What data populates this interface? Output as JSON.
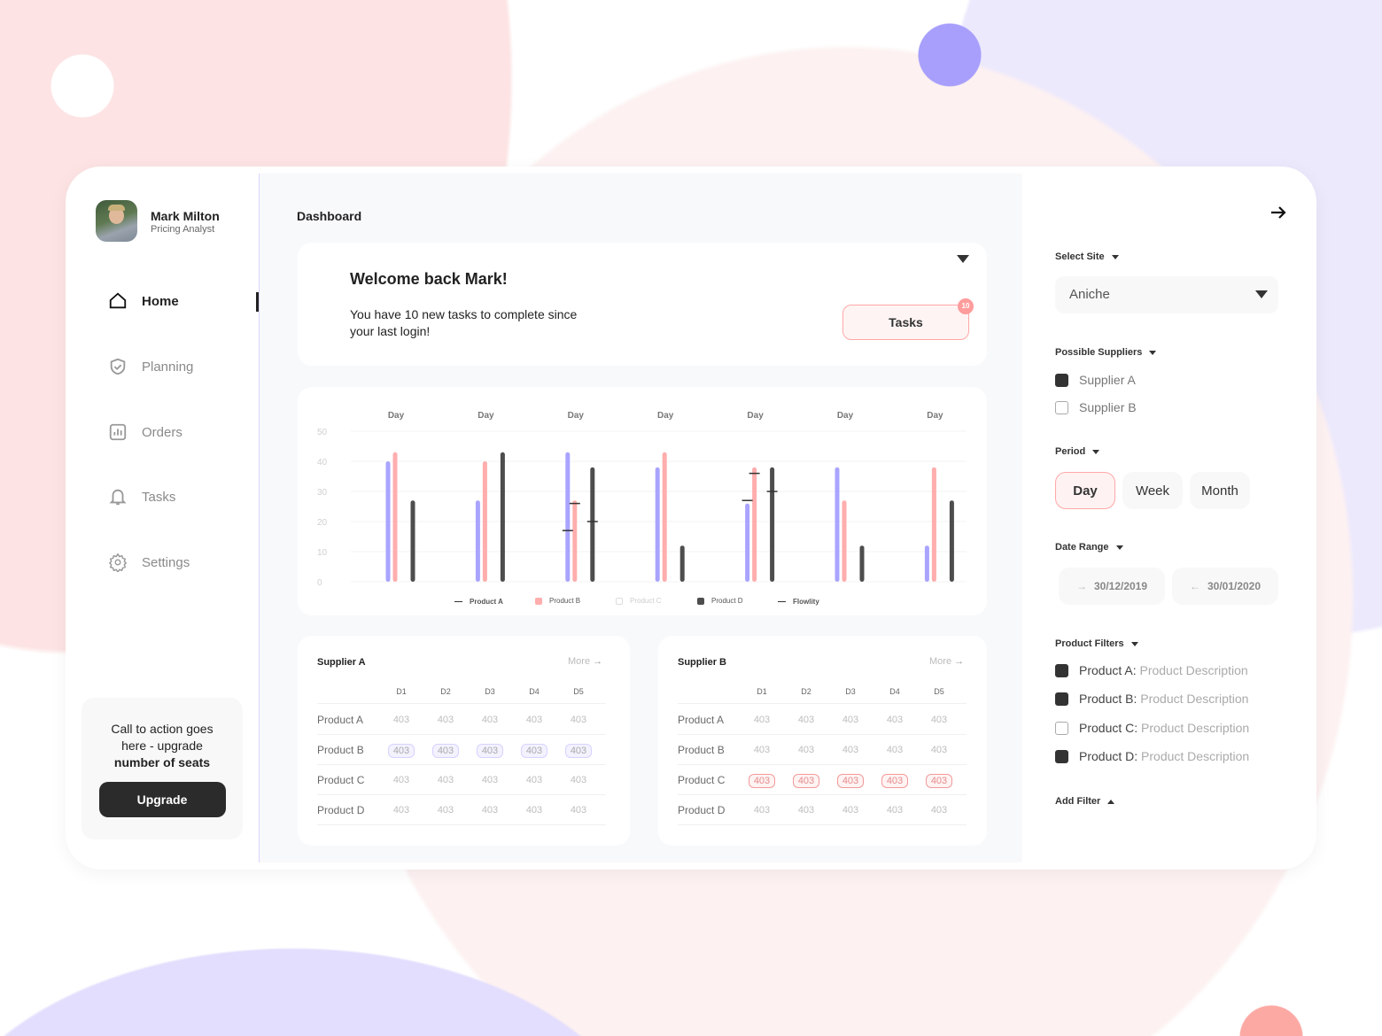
{
  "user": {
    "name": "Mark Milton",
    "role": "Pricing Analyst"
  },
  "nav": [
    {
      "label": "Home",
      "icon": "home-icon",
      "active": true
    },
    {
      "label": "Planning",
      "icon": "shield-check-icon"
    },
    {
      "label": "Orders",
      "icon": "bar-chart-icon"
    },
    {
      "label": "Tasks",
      "icon": "bell-icon"
    },
    {
      "label": "Settings",
      "icon": "gear-icon"
    }
  ],
  "cta": {
    "text_line1": "Call to action goes",
    "text_line2": "here - upgrade",
    "text_bold": "number of seats",
    "button": "Upgrade"
  },
  "header": {
    "title": "Dashboard"
  },
  "welcome": {
    "title": "Welcome back Mark!",
    "line1": "You have 10 new tasks to complete since",
    "line2": "your last login!",
    "tasks_button": "Tasks",
    "badge": "10"
  },
  "colors": {
    "product_a": "#a9a4ff",
    "product_b": "#ffadad",
    "product_d": "#4d4d4d",
    "accent_pink": "#ff9c9c"
  },
  "chart_data": {
    "type": "bar",
    "categories": [
      "Day",
      "Day",
      "Day",
      "Day",
      "Day",
      "Day",
      "Day"
    ],
    "ylim": [
      0,
      50
    ],
    "yticks": [
      0,
      10,
      20,
      30,
      40,
      50
    ],
    "grid": true,
    "legend_placement": "bottom",
    "legend": [
      "Product A",
      "Product B",
      "Product C",
      "Product D",
      "Flowlity"
    ],
    "series": [
      {
        "name": "Product A",
        "values": [
          40,
          27,
          43,
          38,
          26,
          38,
          12
        ]
      },
      {
        "name": "Product B",
        "values": [
          43,
          40,
          27,
          43,
          38,
          27,
          38
        ]
      },
      {
        "name": "Product C",
        "values": [
          null,
          null,
          null,
          null,
          null,
          null,
          null
        ]
      },
      {
        "name": "Product D",
        "values": [
          27,
          43,
          38,
          12,
          38,
          12,
          27
        ]
      }
    ],
    "flowlity_markers": [
      {
        "category_index": 2,
        "series": "Product A",
        "value": 17
      },
      {
        "category_index": 2,
        "series": "Product B",
        "value": 26
      },
      {
        "category_index": 2,
        "series": "Product D",
        "value": 20
      },
      {
        "category_index": 4,
        "series": "Product A",
        "value": 27
      },
      {
        "category_index": 4,
        "series": "Product B",
        "value": 36
      },
      {
        "category_index": 4,
        "series": "Product D",
        "value": 30
      }
    ]
  },
  "tables": [
    {
      "title": "Supplier A",
      "more": "More",
      "columns": [
        "D1",
        "D2",
        "D3",
        "D4",
        "D5"
      ],
      "rows": [
        {
          "label": "Product A",
          "values": [
            "403",
            "403",
            "403",
            "403",
            "403"
          ]
        },
        {
          "label": "Product B",
          "values": [
            "403",
            "403",
            "403",
            "403",
            "403"
          ],
          "highlight": "lavender"
        },
        {
          "label": "Product C",
          "values": [
            "403",
            "403",
            "403",
            "403",
            "403"
          ]
        },
        {
          "label": "Product D",
          "values": [
            "403",
            "403",
            "403",
            "403",
            "403"
          ]
        }
      ]
    },
    {
      "title": "Supplier B",
      "more": "More",
      "columns": [
        "D1",
        "D2",
        "D3",
        "D4",
        "D5"
      ],
      "rows": [
        {
          "label": "Product A",
          "values": [
            "403",
            "403",
            "403",
            "403",
            "403"
          ]
        },
        {
          "label": "Product B",
          "values": [
            "403",
            "403",
            "403",
            "403",
            "403"
          ]
        },
        {
          "label": "Product C",
          "values": [
            "403",
            "403",
            "403",
            "403",
            "403"
          ],
          "highlight": "pink"
        },
        {
          "label": "Product D",
          "values": [
            "403",
            "403",
            "403",
            "403",
            "403"
          ]
        }
      ]
    }
  ],
  "filters": {
    "select_site_label": "Select Site",
    "site_value": "Aniche",
    "suppliers_label": "Possible Suppliers",
    "suppliers": [
      {
        "label": "Supplier A",
        "checked": true
      },
      {
        "label": "Supplier B",
        "checked": false
      }
    ],
    "period_label": "Period",
    "periods": [
      "Day",
      "Week",
      "Month"
    ],
    "period_selected": "Day",
    "date_range_label": "Date Range",
    "date_from": "30/12/2019",
    "date_to": "30/01/2020",
    "product_filters_label": "Product Filters",
    "products": [
      {
        "name": "Product A:",
        "desc": "Product Description",
        "checked": true
      },
      {
        "name": "Product B:",
        "desc": "Product Description",
        "checked": true
      },
      {
        "name": "Product C:",
        "desc": "Product Description",
        "checked": false
      },
      {
        "name": "Product D:",
        "desc": "Product Description",
        "checked": true
      }
    ],
    "add_filter": "Add Filter"
  }
}
